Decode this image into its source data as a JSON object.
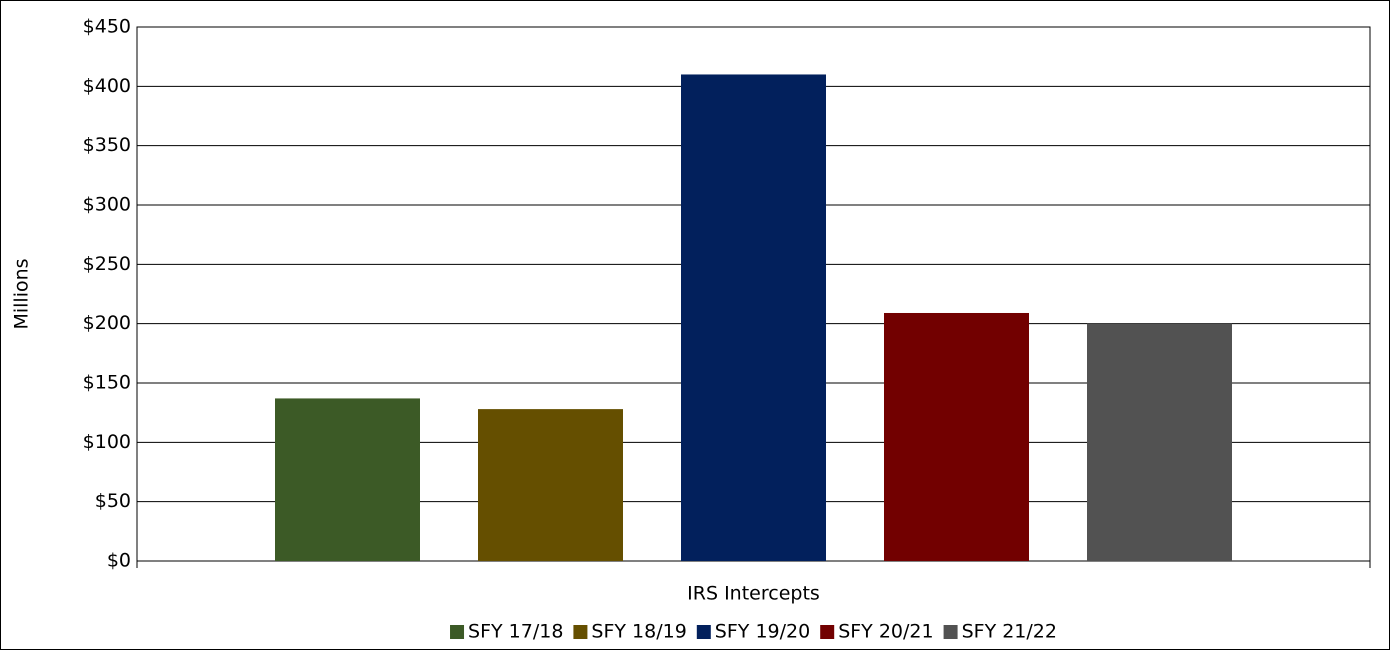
{
  "chart_data": {
    "type": "bar",
    "categories": [
      "IRS Intercepts"
    ],
    "ylabel": "Millions",
    "series": [
      {
        "name": "SFY 17/18",
        "color": "#3c5a26",
        "values": [
          137
        ]
      },
      {
        "name": "SFY 18/19",
        "color": "#654f00",
        "values": [
          128
        ]
      },
      {
        "name": "SFY 19/20",
        "color": "#02205c",
        "values": [
          410
        ]
      },
      {
        "name": "SFY 20/21",
        "color": "#720000",
        "values": [
          209
        ]
      },
      {
        "name": "SFY 21/22",
        "color": "#525252",
        "values": [
          200
        ]
      }
    ],
    "ylim": [
      0,
      450
    ],
    "yticks": [
      {
        "value": 0,
        "label": "$0"
      },
      {
        "value": 50,
        "label": "$50"
      },
      {
        "value": 100,
        "label": "$100"
      },
      {
        "value": 150,
        "label": "$150"
      },
      {
        "value": 200,
        "label": "$200"
      },
      {
        "value": 250,
        "label": "$250"
      },
      {
        "value": 300,
        "label": "$300"
      },
      {
        "value": 350,
        "label": "$350"
      },
      {
        "value": 400,
        "label": "$400"
      },
      {
        "value": 450,
        "label": "$450"
      }
    ],
    "grid": true,
    "legend": "bottom"
  }
}
